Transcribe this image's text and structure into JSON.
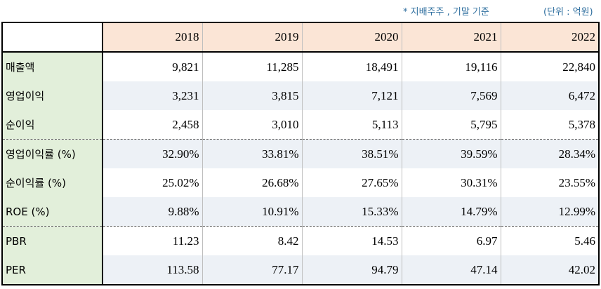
{
  "notes": {
    "basis": "* 지배주주 , 기말 기준",
    "unit": "(단위 : 억원)"
  },
  "table": {
    "years": [
      "2018",
      "2019",
      "2020",
      "2021",
      "2022"
    ],
    "rows": [
      {
        "label": "매출액",
        "values": [
          "9,821",
          "11,285",
          "18,491",
          "19,116",
          "22,840"
        ]
      },
      {
        "label": "영업이익",
        "values": [
          "3,231",
          "3,815",
          "7,121",
          "7,569",
          "6,472"
        ]
      },
      {
        "label": "순이익",
        "values": [
          "2,458",
          "3,010",
          "5,113",
          "5,795",
          "5,378"
        ]
      },
      {
        "label": "영업이익률 (%)",
        "values": [
          "32.90%",
          "33.81%",
          "38.51%",
          "39.59%",
          "28.34%"
        ]
      },
      {
        "label": "순이익률 (%)",
        "values": [
          "25.02%",
          "26.68%",
          "27.65%",
          "30.31%",
          "23.55%"
        ]
      },
      {
        "label": "ROE (%)",
        "values": [
          "9.88%",
          "10.91%",
          "15.33%",
          "14.79%",
          "12.99%"
        ]
      },
      {
        "label": "PBR",
        "values": [
          "11.23",
          "8.42",
          "14.53",
          "6.97",
          "5.46"
        ]
      },
      {
        "label": "PER",
        "values": [
          "113.58",
          "77.17",
          "94.79",
          "47.14",
          "42.02"
        ]
      }
    ]
  },
  "colors": {
    "header_bg": "#fbe5d6",
    "label_bg": "#e2efda",
    "shaded_row_bg": "#edf1f6",
    "note_text": "#2f6f9f"
  }
}
